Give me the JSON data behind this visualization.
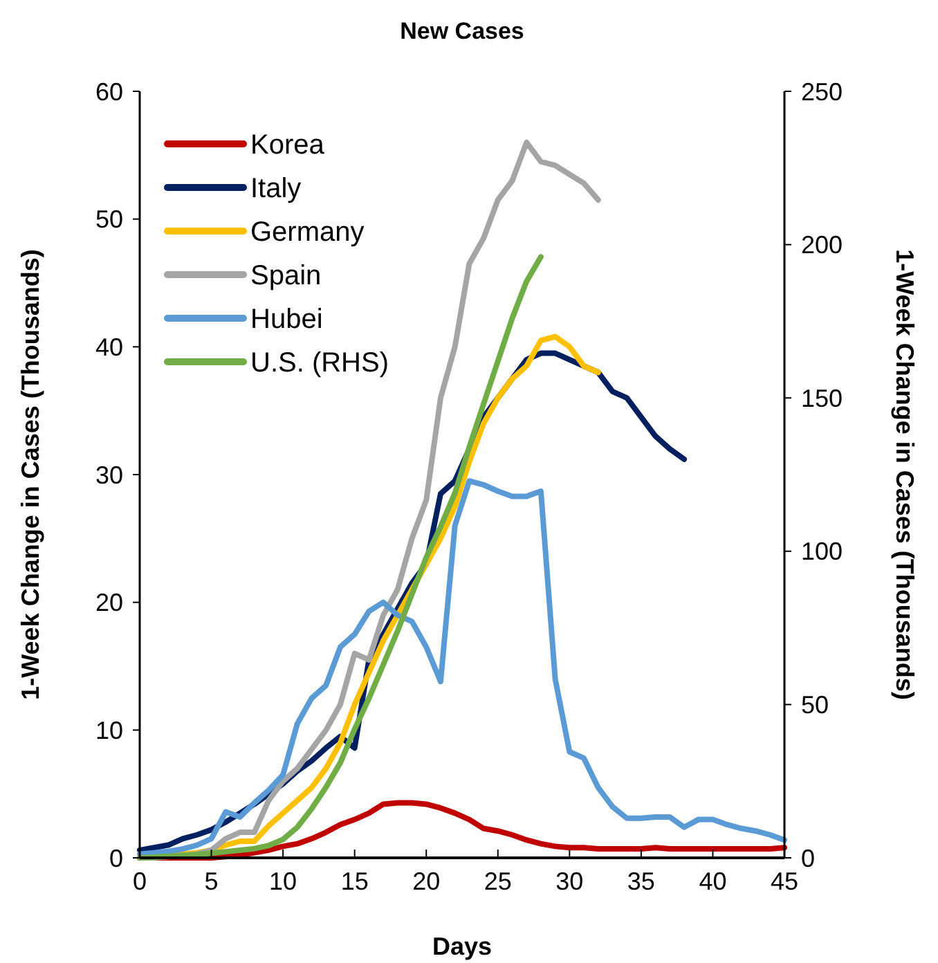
{
  "chart_data": {
    "type": "line",
    "title": "New Cases",
    "xlabel": "Days",
    "ylabel": "1-Week Change in Cases (Thousands)",
    "y2label": "1-Week Change in Cases (Thousands)",
    "x": [
      0,
      1,
      2,
      3,
      4,
      5,
      6,
      7,
      8,
      9,
      10,
      11,
      12,
      13,
      14,
      15,
      16,
      17,
      18,
      19,
      20,
      21,
      22,
      23,
      24,
      25,
      26,
      27,
      28,
      29,
      30,
      31,
      32,
      33,
      34,
      35,
      36,
      37,
      38,
      39,
      40,
      41,
      42,
      43,
      44,
      45
    ],
    "xlim": [
      0,
      45
    ],
    "xticks": [
      0,
      5,
      10,
      15,
      20,
      25,
      30,
      35,
      40,
      45
    ],
    "ylim": [
      0,
      60
    ],
    "yticks": [
      0,
      10,
      20,
      30,
      40,
      50,
      60
    ],
    "y2lim": [
      0,
      250
    ],
    "y2ticks": [
      0,
      50,
      100,
      150,
      200,
      250
    ],
    "legend": "top left",
    "grid": false,
    "marker": "none",
    "line_style": "solid",
    "series": [
      {
        "name": "Korea",
        "color": "#c00000",
        "values": [
          0,
          0,
          0,
          0,
          0,
          0,
          0.1,
          0.2,
          0.4,
          0.6,
          0.9,
          1.1,
          1.5,
          2.0,
          2.6,
          3.0,
          3.5,
          4.2,
          4.3,
          4.3,
          4.2,
          3.9,
          3.5,
          3.0,
          2.3,
          2.1,
          1.8,
          1.4,
          1.1,
          0.9,
          0.8,
          0.8,
          0.7,
          0.7,
          0.7,
          0.7,
          0.8,
          0.7,
          0.7,
          0.7,
          0.7,
          0.7,
          0.7,
          0.7,
          0.7,
          0.8
        ]
      },
      {
        "name": "Italy",
        "color": "#002060",
        "x": [
          0,
          1,
          2,
          3,
          4,
          5,
          6,
          7,
          8,
          9,
          10,
          11,
          12,
          13,
          14,
          15,
          16,
          17,
          18,
          19,
          20,
          21,
          22,
          23,
          24,
          25,
          26,
          27,
          28,
          29,
          30,
          31,
          32,
          33,
          34,
          35,
          36,
          37,
          38
        ],
        "values": [
          0.6,
          0.8,
          1.0,
          1.5,
          1.8,
          2.2,
          2.8,
          3.5,
          4.2,
          5.0,
          5.8,
          6.8,
          7.6,
          8.6,
          9.5,
          8.6,
          15.5,
          17.5,
          19.5,
          21.5,
          23,
          28.5,
          29.5,
          32,
          34.5,
          36,
          37.5,
          39,
          39.5,
          39.5,
          39,
          38.5,
          38,
          36.5,
          36,
          34.5,
          33,
          32,
          31.2
        ]
      },
      {
        "name": "Germany",
        "color": "#ffc000",
        "x": [
          2,
          3,
          4,
          5,
          6,
          7,
          8,
          9,
          10,
          11,
          12,
          13,
          14,
          15,
          16,
          17,
          18,
          19,
          20,
          21,
          22,
          23,
          24,
          25,
          26,
          27,
          28,
          29,
          30,
          31,
          32
        ],
        "values": [
          0.3,
          0.3,
          0.4,
          0.6,
          1.0,
          1.3,
          1.3,
          2.5,
          3.5,
          4.5,
          5.5,
          7.0,
          9.0,
          12,
          14.5,
          17,
          19,
          21,
          23,
          25,
          27.5,
          31,
          34,
          36,
          37.5,
          38.5,
          40.5,
          40.8,
          40,
          38.5,
          38
        ]
      },
      {
        "name": "Spain",
        "color": "#a5a5a5",
        "x": [
          0,
          1,
          2,
          3,
          4,
          5,
          6,
          7,
          8,
          9,
          10,
          11,
          12,
          13,
          14,
          15,
          16,
          17,
          18,
          19,
          20,
          21,
          22,
          23,
          24,
          25,
          26,
          27,
          28,
          29,
          30,
          31,
          32
        ],
        "values": [
          0,
          0,
          0.1,
          0.2,
          0.3,
          0.6,
          1.5,
          2.0,
          2.0,
          4.5,
          6.0,
          7.0,
          8.5,
          10,
          12,
          16,
          15.5,
          19,
          21,
          25,
          28,
          36,
          40,
          46.5,
          48.5,
          51.5,
          53,
          56,
          54.5,
          54.2,
          53.5,
          52.8,
          51.5
        ]
      },
      {
        "name": "Hubei",
        "color": "#5b9bd5",
        "values": [
          0.3,
          0.4,
          0.5,
          0.7,
          1.0,
          1.5,
          3.6,
          3.2,
          4.3,
          5.3,
          6.5,
          10.5,
          12.5,
          13.5,
          16.5,
          17.5,
          19.3,
          20,
          19,
          18.5,
          16.5,
          13.8,
          26,
          29.5,
          29.2,
          28.7,
          28.3,
          28.3,
          28.7,
          14,
          8.3,
          7.8,
          5.5,
          4.0,
          3.1,
          3.1,
          3.2,
          3.2,
          2.4,
          3.0,
          3.0,
          2.6,
          2.3,
          2.1,
          1.8,
          1.4
        ]
      },
      {
        "name": "U.S. (RHS)",
        "color": "#70ad47",
        "axis": "y2",
        "x": [
          0,
          1,
          2,
          3,
          4,
          5,
          6,
          7,
          8,
          9,
          10,
          11,
          12,
          13,
          14,
          15,
          16,
          17,
          18,
          19,
          20,
          21,
          22,
          23,
          24,
          25,
          26,
          27,
          28
        ],
        "values": [
          0,
          0.2,
          0.5,
          0.8,
          1.0,
          1.5,
          2,
          2.5,
          3,
          4,
          6,
          10,
          16,
          23,
          31,
          42,
          52,
          63,
          74,
          86,
          98,
          108,
          119,
          134,
          148,
          162,
          176,
          188,
          196
        ]
      }
    ]
  }
}
